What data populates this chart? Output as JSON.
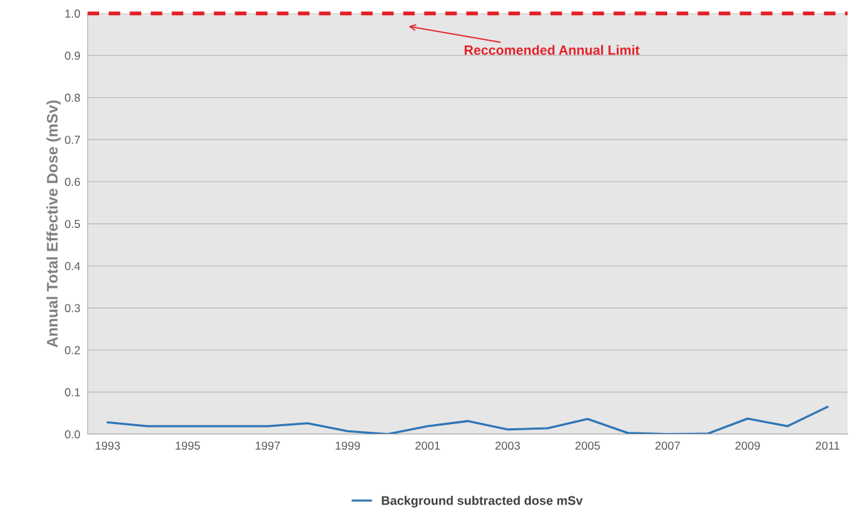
{
  "chart_data": {
    "type": "line",
    "ylabel": "Annual Total Effective Dose (mSv)",
    "categories": [
      "1993",
      null,
      "1995",
      null,
      "1997",
      null,
      "1999",
      null,
      "2001",
      null,
      "2003",
      null,
      "2005",
      null,
      "2007",
      null,
      "2009",
      null,
      "2011"
    ],
    "series": [
      {
        "name": "Background subtracted dose mSv",
        "color": "#2e75b6",
        "values": [
          0.028,
          0.019,
          0.019,
          0.019,
          0.019,
          0.026,
          0.007,
          0.0,
          0.019,
          0.031,
          0.011,
          0.014,
          0.036,
          0.003,
          0.0,
          0.001,
          0.037,
          0.019,
          0.065
        ]
      }
    ],
    "ylim": [
      0,
      1.0
    ],
    "yticks": [
      {
        "value": 0,
        "label": "0.0"
      },
      0.1,
      0.2,
      0.3,
      0.4,
      0.5,
      0.6,
      0.7,
      0.8,
      0.9,
      {
        "value": 1.0,
        "label": "1.0"
      }
    ],
    "ref_lines": [
      {
        "axis": "y",
        "value": 1.0,
        "label": "Reccomended Annual Limit",
        "color": "#e3202a",
        "line_style": "dashed"
      }
    ],
    "grid": "y",
    "legend": "bottom",
    "marker": "none",
    "line_style": "solid"
  }
}
